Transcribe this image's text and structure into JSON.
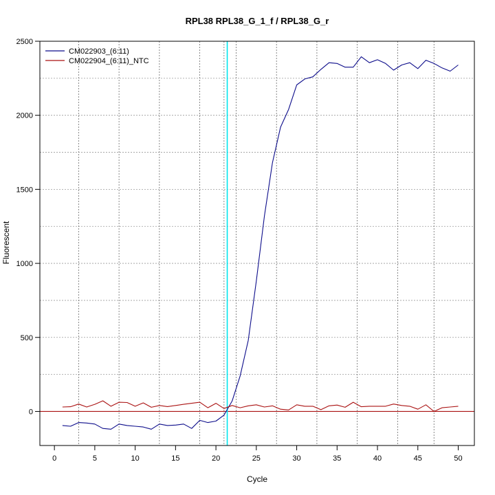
{
  "chart_data": {
    "type": "line",
    "title": "RPL38  RPL38_G_1_f / RPL38_G_r",
    "xlabel": "Cycle",
    "ylabel": "Fluorescent",
    "xlim": [
      -1.8,
      52
    ],
    "ylim": [
      -230,
      2500
    ],
    "xticks": [
      0,
      5,
      10,
      15,
      20,
      25,
      30,
      35,
      40,
      45,
      50
    ],
    "yticks": [
      0,
      500,
      1000,
      1500,
      2000,
      2500
    ],
    "grid": true,
    "grid_y": [
      0,
      250,
      500,
      750,
      1000,
      1250,
      1500,
      1750,
      2000,
      2250,
      2500
    ],
    "grid_x": [
      3,
      8,
      13,
      18,
      21,
      22.5,
      27.5,
      32.5,
      37.5,
      42.5,
      47
    ],
    "legend_position": "top-left",
    "threshold": {
      "x": 21.4,
      "color": "#00e5ee"
    },
    "baseline": {
      "y": 0,
      "color": "#aa1111"
    },
    "series": [
      {
        "name": "CM022903_(6:11)",
        "color": "#0b0b8a",
        "x": [
          1,
          2,
          3,
          4,
          5,
          6,
          7,
          8,
          9,
          10,
          11,
          12,
          13,
          14,
          15,
          16,
          17,
          18,
          19,
          20,
          21,
          22,
          23,
          24,
          25,
          26,
          27,
          28,
          29,
          30,
          31,
          32,
          33,
          34,
          35,
          36,
          37,
          38,
          39,
          40,
          41,
          42,
          43,
          44,
          45,
          46,
          47,
          48,
          49,
          50
        ],
        "y": [
          -95,
          -100,
          -75,
          -78,
          -85,
          -115,
          -120,
          -85,
          -95,
          -100,
          -105,
          -120,
          -85,
          -95,
          -92,
          -85,
          -115,
          -60,
          -75,
          -65,
          -25,
          70,
          240,
          480,
          880,
          1320,
          1680,
          1920,
          2040,
          2205,
          2245,
          2260,
          2310,
          2355,
          2350,
          2325,
          2325,
          2395,
          2355,
          2375,
          2350,
          2305,
          2340,
          2355,
          2315,
          2372,
          2350,
          2320,
          2298,
          2340
        ]
      },
      {
        "name": "CM022904_(6:11)_NTC",
        "color": "#aa1111",
        "x": [
          1,
          2,
          3,
          4,
          5,
          6,
          7,
          8,
          9,
          10,
          11,
          12,
          13,
          14,
          15,
          16,
          17,
          18,
          19,
          20,
          21,
          22,
          23,
          24,
          25,
          26,
          27,
          28,
          29,
          30,
          31,
          32,
          33,
          34,
          35,
          36,
          37,
          38,
          39,
          40,
          41,
          42,
          43,
          44,
          45,
          46,
          47,
          48,
          49,
          50
        ],
        "y": [
          30,
          32,
          50,
          30,
          48,
          72,
          35,
          62,
          60,
          35,
          58,
          28,
          40,
          33,
          40,
          48,
          55,
          62,
          25,
          55,
          20,
          40,
          25,
          38,
          45,
          30,
          38,
          15,
          10,
          45,
          35,
          35,
          12,
          38,
          43,
          28,
          62,
          32,
          35,
          35,
          35,
          50,
          40,
          35,
          15,
          45,
          0,
          25,
          30,
          35
        ]
      }
    ]
  }
}
